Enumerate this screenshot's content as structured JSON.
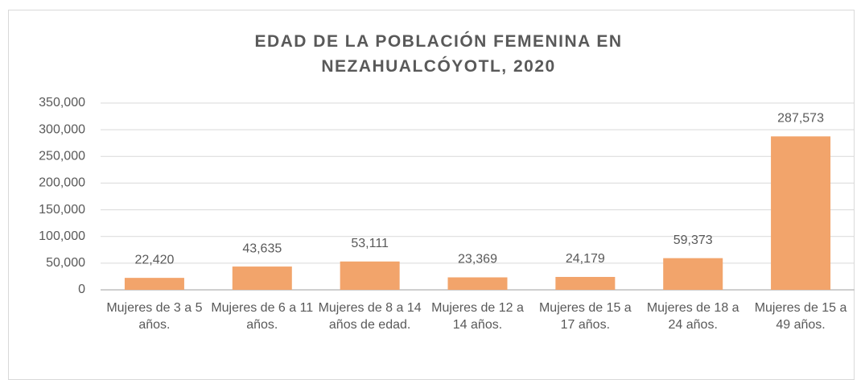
{
  "chart_data": {
    "type": "bar",
    "title": "EDAD DE LA POBLACIÓN FEMENINA EN NEZAHUALCÓYOTL, 2020",
    "categories": [
      "Mujeres de 3 a 5 años.",
      "Mujeres de 6 a 11 años.",
      "Mujeres de 8 a 14 años de edad.",
      "Mujeres de 12 a 14 años.",
      "Mujeres de 15 a 17 años.",
      "Mujeres de 18 a 24 años.",
      "Mujeres de 15 a 49 años."
    ],
    "values": [
      22420,
      43635,
      53111,
      23369,
      24179,
      59373,
      287573
    ],
    "value_labels": [
      "22,420",
      "43,635",
      "53,111",
      "23,369",
      "24,179",
      "59,373",
      "287,573"
    ],
    "color": "#f2a46b",
    "ylim": [
      0,
      350000
    ],
    "yticks": [
      0,
      {
        "value": 50000,
        "label": "50,000"
      },
      {
        "value": 100000,
        "label": "100,000"
      },
      {
        "value": 150000,
        "label": "150,000"
      },
      {
        "value": 200000,
        "label": "200,000"
      },
      {
        "value": 250000,
        "label": "250,000"
      },
      {
        "value": 300000,
        "label": "300,000"
      },
      {
        "value": 350000,
        "label": "350,000"
      }
    ],
    "grid": true
  }
}
